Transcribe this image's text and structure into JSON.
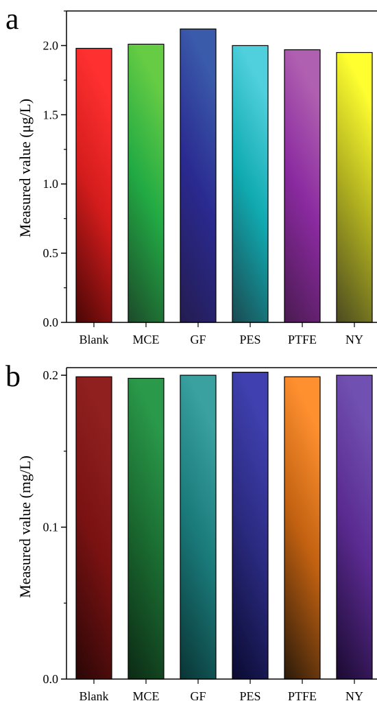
{
  "chart_data": [
    {
      "type": "bar",
      "panel_label": "a",
      "ylabel": "Measured value (μg/L)",
      "categories": [
        "Blank",
        "MCE",
        "GF",
        "PES",
        "PTFE",
        "NY"
      ],
      "values": [
        1.98,
        2.01,
        2.12,
        2.0,
        1.97,
        1.95
      ],
      "ylim": [
        0,
        2.25
      ],
      "yticks": [
        0.0,
        0.5,
        1.0,
        1.5,
        2.0
      ],
      "ytick_labels": [
        "0.0",
        "0.5",
        "1.0",
        "1.5",
        "2.0"
      ],
      "grid": false,
      "colors": [
        [
          "#4a0606",
          "#d41c1c",
          "#ff3030"
        ],
        [
          "#1c4a2a",
          "#22aa44",
          "#66cc44"
        ],
        [
          "#241c50",
          "#2a2a90",
          "#3a5aaa"
        ],
        [
          "#1a4a50",
          "#10aab0",
          "#50d0dd"
        ],
        [
          "#4a1a50",
          "#8a2aa0",
          "#b060b0"
        ],
        [
          "#4a4a20",
          "#b0b020",
          "#ffff30"
        ]
      ]
    },
    {
      "type": "bar",
      "panel_label": "b",
      "ylabel": "Measured value (mg/L)",
      "categories": [
        "Blank",
        "MCE",
        "GF",
        "PES",
        "PTFE",
        "NY"
      ],
      "values": [
        0.199,
        0.198,
        0.2,
        0.202,
        0.199,
        0.2
      ],
      "ylim": [
        0,
        0.205
      ],
      "yticks": [
        0.0,
        0.1,
        0.2
      ],
      "ytick_labels": [
        "0.0",
        "0.1",
        "0.2"
      ],
      "grid": false,
      "colors": [
        [
          "#2a0606",
          "#7a1212",
          "#902020"
        ],
        [
          "#0c2a14",
          "#1a6a30",
          "#2a9a4a"
        ],
        [
          "#0a3434",
          "#1a7a7a",
          "#3aa0a0"
        ],
        [
          "#0a0a30",
          "#2a2a80",
          "#4040b0"
        ],
        [
          "#2a1a0a",
          "#c06010",
          "#ff9030"
        ],
        [
          "#1a0a30",
          "#5a2a90",
          "#7050b0"
        ]
      ]
    }
  ]
}
